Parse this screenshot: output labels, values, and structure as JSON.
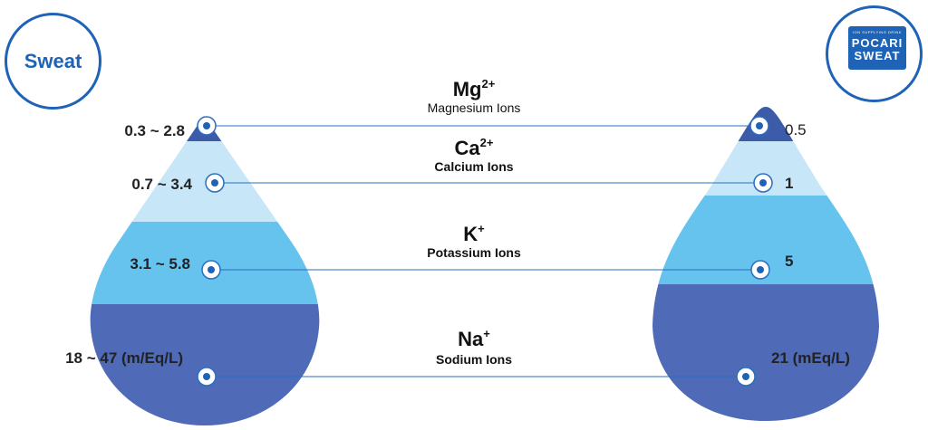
{
  "left_badge": {
    "label": "Sweat"
  },
  "right_badge": {
    "logo_small": "ION SUPPLYING DRINK",
    "logo_line1": "POCARI",
    "logo_line2": "SWEAT"
  },
  "ions": [
    {
      "symbol": "Mg",
      "charge": "2+",
      "name": "Magnesium Ions",
      "sweat_range": "0.3 ~ 2.8",
      "pocari_value": "0.5"
    },
    {
      "symbol": "Ca",
      "charge": "2+",
      "name": "Calcium Ions",
      "sweat_range": "0.7 ~ 3.4",
      "pocari_value": "1"
    },
    {
      "symbol": "K",
      "charge": "+",
      "name": "Potassium Ions",
      "sweat_range": "3.1 ~ 5.8",
      "pocari_value": "5"
    },
    {
      "symbol": "Na",
      "charge": "+",
      "name": "Sodium Ions",
      "sweat_range": "18 ~ 47 (m/Eq/L)",
      "pocari_value": "21 (mEq/L)"
    }
  ],
  "colors": {
    "brand_blue": "#1e63b5",
    "magnesium_band": "#3c5ba8",
    "calcium_band": "#c7e6f8",
    "potassium_band": "#65c3ee",
    "sodium_band": "#4f6ab6",
    "connector_line": "#2a6ec1"
  }
}
